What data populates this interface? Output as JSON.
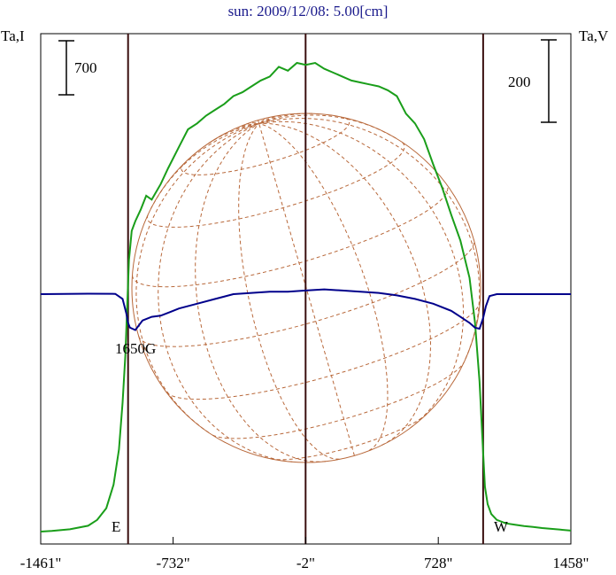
{
  "chart_data": {
    "type": "line",
    "title": "sun: 2009/12/08: 5.00[cm]",
    "left_axis_label": "Ta,I",
    "right_axis_label": "Ta,V",
    "left_scale_bar": "700",
    "right_scale_bar": "200",
    "annotation": "1650G",
    "east_label": "E",
    "west_label": "W",
    "x_tick_labels": [
      "-1461\"",
      "-732\"",
      "-2\"",
      "728\"",
      "1458\""
    ],
    "x_ticks": [
      -1461,
      -732,
      -2,
      728,
      1458
    ],
    "xlim": [
      -1461,
      1458
    ],
    "limb_lines_x": [
      -980,
      975
    ],
    "grid": false,
    "colors": {
      "intensity": "#1a9e1a",
      "polarization": "#00008b",
      "disk": "#b8683a",
      "limb": "#3a0f0f"
    },
    "series": [
      {
        "color": "#1a9e1a",
        "x": [
          -1461,
          -1400,
          -1300,
          -1200,
          -1150,
          -1100,
          -1060,
          -1030,
          -1010,
          -995,
          -985,
          -975,
          -960,
          -940,
          -910,
          -880,
          -850,
          -800,
          -760,
          -700,
          -650,
          -600,
          -550,
          -500,
          -450,
          -400,
          -350,
          -300,
          -250,
          -200,
          -150,
          -100,
          -50,
          -2,
          50,
          100,
          150,
          200,
          250,
          300,
          350,
          400,
          450,
          500,
          550,
          600,
          650,
          700,
          750,
          800,
          850,
          900,
          930,
          955,
          970,
          985,
          1000,
          1020,
          1050,
          1100,
          1150,
          1200,
          1250,
          1300,
          1400,
          1458
        ],
        "y": [
          0,
          3,
          12,
          30,
          60,
          120,
          240,
          420,
          660,
          900,
          1150,
          1390,
          1540,
          1590,
          1650,
          1720,
          1700,
          1780,
          1860,
          1970,
          2060,
          2090,
          2130,
          2160,
          2190,
          2230,
          2250,
          2280,
          2310,
          2330,
          2380,
          2360,
          2400,
          2390,
          2400,
          2370,
          2350,
          2330,
          2310,
          2300,
          2290,
          2280,
          2260,
          2230,
          2140,
          2090,
          2010,
          1880,
          1760,
          1620,
          1490,
          1300,
          1070,
          770,
          490,
          230,
          140,
          90,
          60,
          42,
          35,
          28,
          24,
          18,
          10,
          5
        ]
      },
      {
        "color": "#00008b",
        "x": [
          -1461,
          -1200,
          -1050,
          -1010,
          -990,
          -980,
          -970,
          -940,
          -900,
          -850,
          -800,
          -750,
          -700,
          -600,
          -500,
          -400,
          -300,
          -200,
          -100,
          -2,
          100,
          200,
          300,
          400,
          500,
          600,
          700,
          800,
          850,
          900,
          930,
          955,
          975,
          990,
          1010,
          1050,
          1200,
          1458
        ],
        "y": [
          0,
          2,
          1,
          -20,
          -80,
          -120,
          -140,
          -150,
          -110,
          -95,
          -90,
          -75,
          -60,
          -40,
          -20,
          0,
          5,
          10,
          10,
          15,
          20,
          15,
          10,
          5,
          -5,
          -20,
          -40,
          -70,
          -95,
          -120,
          -140,
          -145,
          -100,
          -50,
          -8,
          0,
          0,
          0
        ]
      }
    ],
    "y_left_range": [
      0,
      2480
    ],
    "y_right_range": [
      -340,
      160
    ]
  }
}
